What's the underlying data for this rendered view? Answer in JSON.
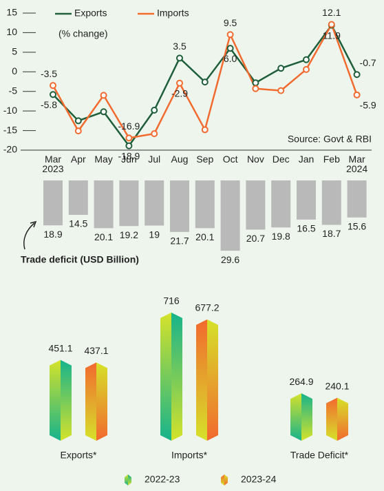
{
  "chart_data": [
    {
      "type": "line",
      "subtitle": "(% change)",
      "annotation": "Source: Govt & RBI",
      "categories": [
        "Mar 2023",
        "Apr",
        "May",
        "Jun",
        "Jul",
        "Aug",
        "Sep",
        "Oct",
        "Nov",
        "Dec",
        "Jan",
        "Feb",
        "Mar 2024"
      ],
      "series": [
        {
          "name": "Exports",
          "color": "#1e5e3a",
          "values": [
            -5.8,
            -12.5,
            -10.2,
            -18.9,
            -9.8,
            3.5,
            -2.6,
            6.0,
            -2.8,
            0.9,
            3.1,
            11.9,
            -0.7
          ],
          "value_labels": [
            "-5.8",
            null,
            null,
            "-18.9",
            null,
            "3.5",
            null,
            "6.0",
            null,
            null,
            null,
            "11.9",
            "-0.7"
          ]
        },
        {
          "name": "Imports",
          "color": "#f26a2e",
          "values": [
            -3.5,
            -15.1,
            -6.0,
            -16.9,
            -15.8,
            -2.9,
            -14.8,
            9.5,
            -4.3,
            -4.8,
            0.6,
            12.1,
            -5.9
          ],
          "value_labels": [
            "-3.5",
            null,
            null,
            "-16.9",
            null,
            "-2.9",
            null,
            "9.5",
            null,
            null,
            null,
            "12.1",
            "-5.9"
          ]
        }
      ],
      "ylim": [
        -20,
        15
      ],
      "yticks": [
        15,
        10,
        5,
        0,
        -5,
        -10,
        -15,
        -20
      ],
      "legend": "top"
    },
    {
      "type": "bar",
      "title": "Trade deficit (USD Billion)",
      "values": [
        18.9,
        14.5,
        20.1,
        19.2,
        19,
        21.7,
        20.1,
        29.6,
        20.7,
        19.8,
        16.5,
        18.7,
        15.6
      ],
      "color": "#b9b9b9"
    },
    {
      "type": "prism-bar",
      "categories": [
        "Exports*",
        "Imports*",
        "Trade Deficit*"
      ],
      "series": [
        {
          "name": "2022-23",
          "color": "#16b38c",
          "values": [
            451.1,
            716,
            264.9
          ]
        },
        {
          "name": "2023-24",
          "color": "#f2692e",
          "values": [
            437.1,
            677.2,
            240.1
          ]
        }
      ],
      "legend": "bottom"
    }
  ]
}
